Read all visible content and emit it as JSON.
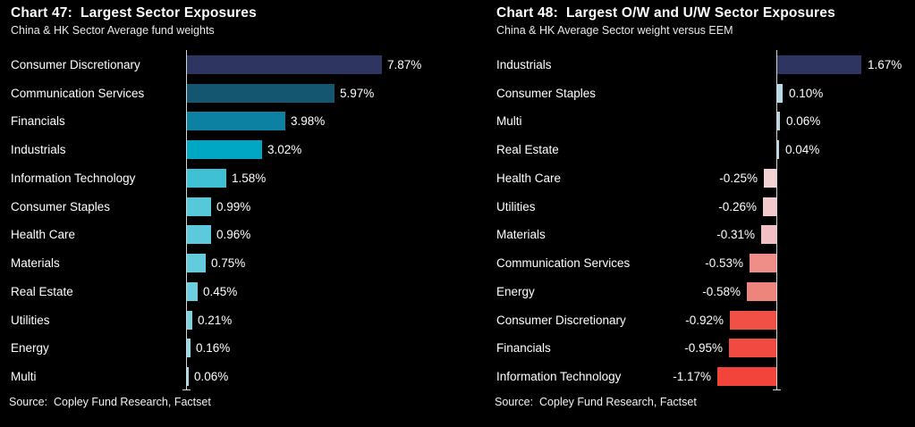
{
  "window": {
    "background": "#000000",
    "text_color": "#ffffff",
    "axis_color": "#d4d4d4"
  },
  "chart_data": [
    {
      "type": "bar",
      "orientation": "horizontal",
      "title": "Chart 47:  Largest Sector Exposures",
      "subtitle": "China & HK Sector Average fund weights",
      "source": "Source:  Copley Fund Research, Factset",
      "xlabel": "",
      "ylabel": "",
      "xlim": [
        0,
        8.5
      ],
      "grid": false,
      "legend": false,
      "categories": [
        "Consumer Discretionary",
        "Communication Services",
        "Financials",
        "Industrials",
        "Information Technology",
        "Consumer Staples",
        "Health Care",
        "Materials",
        "Real Estate",
        "Utilities",
        "Energy",
        "Multi"
      ],
      "values": [
        7.87,
        5.97,
        3.98,
        3.02,
        1.58,
        0.99,
        0.96,
        0.75,
        0.45,
        0.21,
        0.16,
        0.06
      ],
      "value_labels": [
        "7.87%",
        "5.97%",
        "3.98%",
        "3.02%",
        "1.58%",
        "0.99%",
        "0.96%",
        "0.75%",
        "0.45%",
        "0.21%",
        "0.16%",
        "0.06%"
      ],
      "bar_colors": [
        "#2e3560",
        "#14566f",
        "#0c81a2",
        "#00a7c5",
        "#3fc0d5",
        "#55c8da",
        "#5cc9dc",
        "#62cbdd",
        "#6ccedf",
        "#7ed3e3",
        "#93d8e6",
        "#a5dce9"
      ]
    },
    {
      "type": "bar",
      "orientation": "horizontal",
      "title": "Chart 48:  Largest O/W and U/W Sector Exposures",
      "subtitle": "China & HK Average Sector weight versus EEM",
      "source": "Source:  Copley Fund Research, Factset",
      "xlabel": "",
      "ylabel": "",
      "xlim": [
        -1.4,
        1.9
      ],
      "grid": false,
      "legend": false,
      "categories": [
        "Industrials",
        "Consumer Staples",
        "Multi",
        "Real Estate",
        "Health Care",
        "Utilities",
        "Materials",
        "Communication Services",
        "Energy",
        "Consumer Discretionary",
        "Financials",
        "Information Technology"
      ],
      "values": [
        1.67,
        0.1,
        0.06,
        0.04,
        -0.25,
        -0.26,
        -0.31,
        -0.53,
        -0.58,
        -0.92,
        -0.95,
        -1.17
      ],
      "value_labels": [
        "1.67%",
        "0.10%",
        "0.06%",
        "0.04%",
        "-0.25%",
        "-0.26%",
        "-0.31%",
        "-0.53%",
        "-0.58%",
        "-0.92%",
        "-0.95%",
        "-1.17%"
      ],
      "bar_colors": [
        "#2e3560",
        "#b5dbe6",
        "#b5d8e3",
        "#badae5",
        "#f3d2d5",
        "#f2cacd",
        "#f0c0c4",
        "#ef8e88",
        "#ee857d",
        "#f05045",
        "#f14a40",
        "#f2443a"
      ]
    }
  ]
}
